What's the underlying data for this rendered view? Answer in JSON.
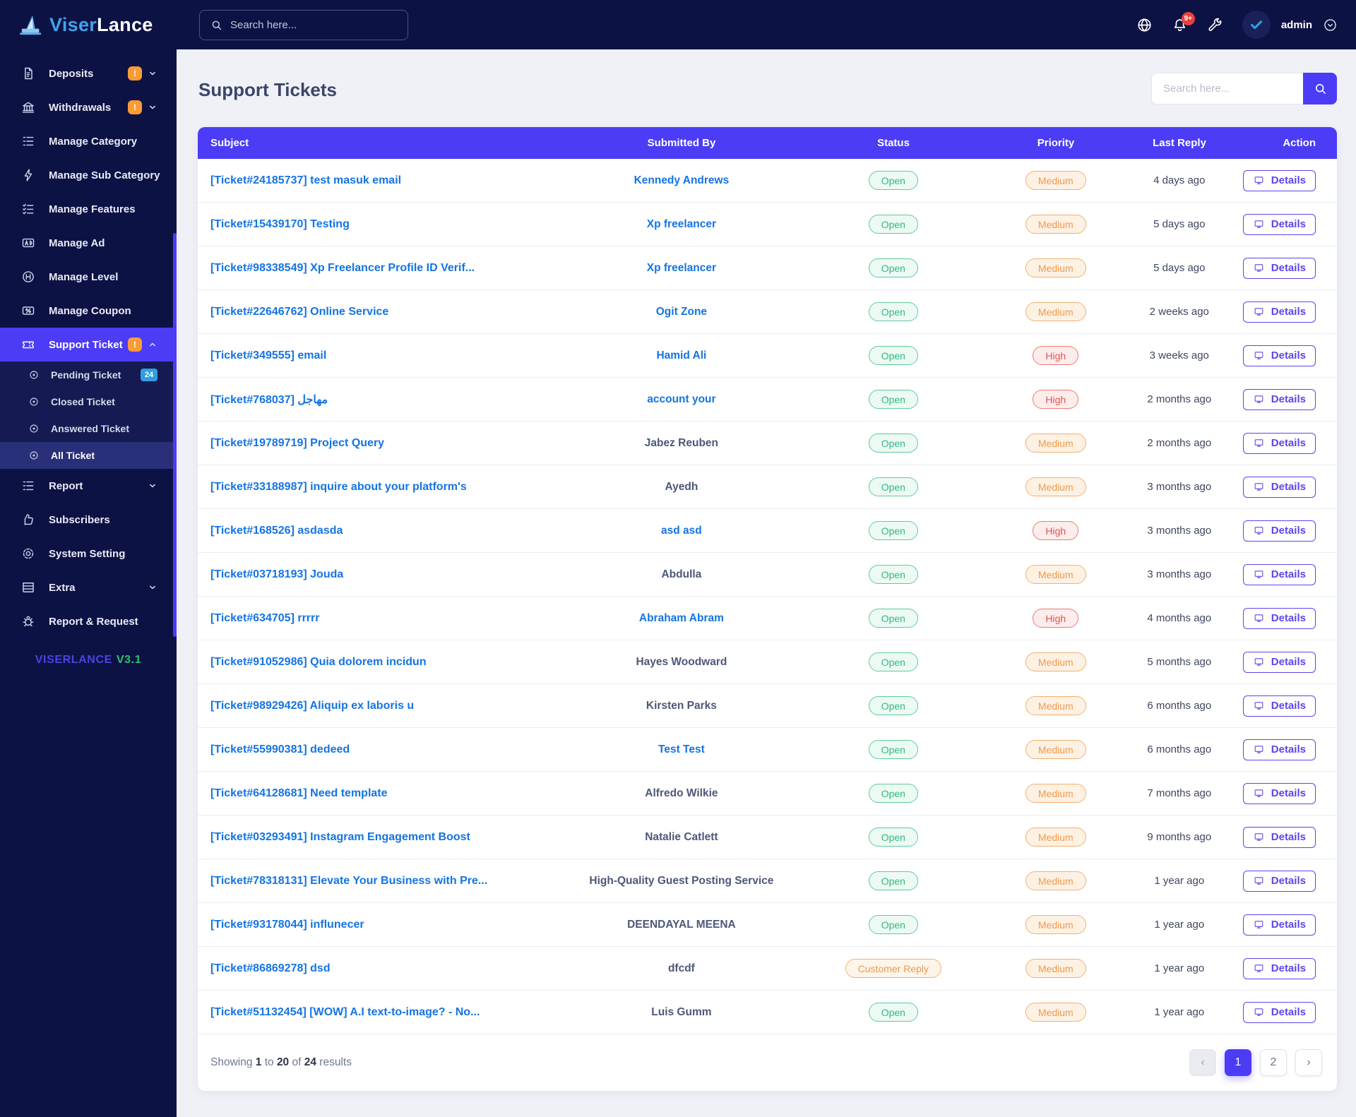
{
  "brand": {
    "name_primary": "Viser",
    "name_secondary": "Lance",
    "version_name": "VISERLANCE",
    "version": "V3.1"
  },
  "topbar": {
    "search_placeholder": "Search here...",
    "notification_count": "9+",
    "username": "admin",
    "icons": [
      "globe-icon",
      "bell-icon",
      "wrench-icon",
      "verified-avatar-icon",
      "chevron-circle-icon"
    ]
  },
  "sidebar": {
    "accent_color": "#4c3cf5",
    "items": [
      {
        "label": "Deposits",
        "icon": "invoice",
        "badge": "!",
        "badge_color": "orange",
        "chevron": "down"
      },
      {
        "label": "Withdrawals",
        "icon": "bank",
        "badge": "!",
        "badge_color": "orange",
        "chevron": "down"
      },
      {
        "label": "Manage Category",
        "icon": "list"
      },
      {
        "label": "Manage Sub Category",
        "icon": "bolt"
      },
      {
        "label": "Manage Features",
        "icon": "list-check"
      },
      {
        "label": "Manage Ad",
        "icon": "ad"
      },
      {
        "label": "Manage Level",
        "icon": "level"
      },
      {
        "label": "Manage Coupon",
        "icon": "coupon"
      },
      {
        "label": "Support Ticket",
        "icon": "ticket",
        "badge": "!",
        "badge_color": "orange",
        "chevron": "up",
        "active": true,
        "children": [
          {
            "label": "Pending Ticket",
            "badge": "24",
            "badge_color": "blue"
          },
          {
            "label": "Closed Ticket"
          },
          {
            "label": "Answered Ticket"
          },
          {
            "label": "All Ticket",
            "active": true
          }
        ]
      },
      {
        "label": "Report",
        "icon": "list",
        "chevron": "down"
      },
      {
        "label": "Subscribers",
        "icon": "thumbs-up"
      },
      {
        "label": "System Setting",
        "icon": "cog"
      },
      {
        "label": "Extra",
        "icon": "table",
        "chevron": "down"
      },
      {
        "label": "Report & Request",
        "icon": "bug"
      }
    ]
  },
  "page": {
    "title": "Support Tickets",
    "search_placeholder": "Search here..."
  },
  "table": {
    "columns": [
      "Subject",
      "Submitted By",
      "Status",
      "Priority",
      "Last Reply",
      "Action"
    ],
    "action_label": "Details",
    "rows": [
      {
        "subject": "[Ticket#24185737] test masuk email",
        "by": "Kennedy Andrews",
        "by_link": true,
        "status": "Open",
        "status_type": "open",
        "priority": "Medium",
        "priority_type": "medium",
        "last_reply": "4 days ago"
      },
      {
        "subject": "[Ticket#15439170] Testing",
        "by": "Xp freelancer",
        "by_link": true,
        "status": "Open",
        "status_type": "open",
        "priority": "Medium",
        "priority_type": "medium",
        "last_reply": "5 days ago"
      },
      {
        "subject": "[Ticket#98338549] Xp Freelancer Profile ID Verif...",
        "by": "Xp freelancer",
        "by_link": true,
        "status": "Open",
        "status_type": "open",
        "priority": "Medium",
        "priority_type": "medium",
        "last_reply": "5 days ago"
      },
      {
        "subject": "[Ticket#22646762] Online Service",
        "by": "Ogit Zone",
        "by_link": true,
        "status": "Open",
        "status_type": "open",
        "priority": "Medium",
        "priority_type": "medium",
        "last_reply": "2 weeks ago"
      },
      {
        "subject": "[Ticket#349555] email",
        "by": "Hamid Ali",
        "by_link": true,
        "status": "Open",
        "status_type": "open",
        "priority": "High",
        "priority_type": "high",
        "last_reply": "3 weeks ago"
      },
      {
        "subject": "[Ticket#768037] مهاجل",
        "by": "account your",
        "by_link": true,
        "status": "Open",
        "status_type": "open",
        "priority": "High",
        "priority_type": "high",
        "last_reply": "2 months ago"
      },
      {
        "subject": "[Ticket#19789719] Project Query",
        "by": "Jabez Reuben",
        "by_link": false,
        "status": "Open",
        "status_type": "open",
        "priority": "Medium",
        "priority_type": "medium",
        "last_reply": "2 months ago"
      },
      {
        "subject": "[Ticket#33188987] inquire about your platform's",
        "by": "Ayedh",
        "by_link": false,
        "status": "Open",
        "status_type": "open",
        "priority": "Medium",
        "priority_type": "medium",
        "last_reply": "3 months ago"
      },
      {
        "subject": "[Ticket#168526] asdasda",
        "by": "asd asd",
        "by_link": true,
        "status": "Open",
        "status_type": "open",
        "priority": "High",
        "priority_type": "high",
        "last_reply": "3 months ago"
      },
      {
        "subject": "[Ticket#03718193] Jouda",
        "by": "Abdulla",
        "by_link": false,
        "status": "Open",
        "status_type": "open",
        "priority": "Medium",
        "priority_type": "medium",
        "last_reply": "3 months ago"
      },
      {
        "subject": "[Ticket#634705] rrrrr",
        "by": "Abraham Abram",
        "by_link": true,
        "status": "Open",
        "status_type": "open",
        "priority": "High",
        "priority_type": "high",
        "last_reply": "4 months ago"
      },
      {
        "subject": "[Ticket#91052986] Quia dolorem incidun",
        "by": "Hayes Woodward",
        "by_link": false,
        "status": "Open",
        "status_type": "open",
        "priority": "Medium",
        "priority_type": "medium",
        "last_reply": "5 months ago"
      },
      {
        "subject": "[Ticket#98929426] Aliquip ex laboris u",
        "by": "Kirsten Parks",
        "by_link": false,
        "status": "Open",
        "status_type": "open",
        "priority": "Medium",
        "priority_type": "medium",
        "last_reply": "6 months ago"
      },
      {
        "subject": "[Ticket#55990381] dedeed",
        "by": "Test Test",
        "by_link": true,
        "status": "Open",
        "status_type": "open",
        "priority": "Medium",
        "priority_type": "medium",
        "last_reply": "6 months ago"
      },
      {
        "subject": "[Ticket#64128681] Need template",
        "by": "Alfredo Wilkie",
        "by_link": false,
        "status": "Open",
        "status_type": "open",
        "priority": "Medium",
        "priority_type": "medium",
        "last_reply": "7 months ago"
      },
      {
        "subject": "[Ticket#03293491] Instagram Engagement Boost",
        "by": "Natalie Catlett",
        "by_link": false,
        "status": "Open",
        "status_type": "open",
        "priority": "Medium",
        "priority_type": "medium",
        "last_reply": "9 months ago"
      },
      {
        "subject": "[Ticket#78318131] Elevate Your Business with Pre...",
        "by": "High-Quality Guest Posting Service",
        "by_link": false,
        "status": "Open",
        "status_type": "open",
        "priority": "Medium",
        "priority_type": "medium",
        "last_reply": "1 year ago"
      },
      {
        "subject": "[Ticket#93178044] influnecer",
        "by": "DEENDAYAL MEENA",
        "by_link": false,
        "status": "Open",
        "status_type": "open",
        "priority": "Medium",
        "priority_type": "medium",
        "last_reply": "1 year ago"
      },
      {
        "subject": "[Ticket#86869278] dsd",
        "by": "dfcdf",
        "by_link": false,
        "status": "Customer Reply",
        "status_type": "customer-reply",
        "priority": "Medium",
        "priority_type": "medium",
        "last_reply": "1 year ago"
      },
      {
        "subject": "[Ticket#51132454] [WOW] A.I text-to-image? - No...",
        "by": "Luis Gumm",
        "by_link": false,
        "status": "Open",
        "status_type": "open",
        "priority": "Medium",
        "priority_type": "medium",
        "last_reply": "1 year ago"
      }
    ]
  },
  "footer": {
    "s1": "Showing ",
    "from": "1",
    "s2": " to ",
    "to": "20",
    "s3": " of ",
    "total": "24",
    "s4": " results"
  },
  "pagination": {
    "buttons": [
      {
        "label": "‹",
        "state": "disabled"
      },
      {
        "label": "1",
        "state": "active"
      },
      {
        "label": "2",
        "state": "default"
      },
      {
        "label": "›",
        "state": "default"
      }
    ]
  }
}
